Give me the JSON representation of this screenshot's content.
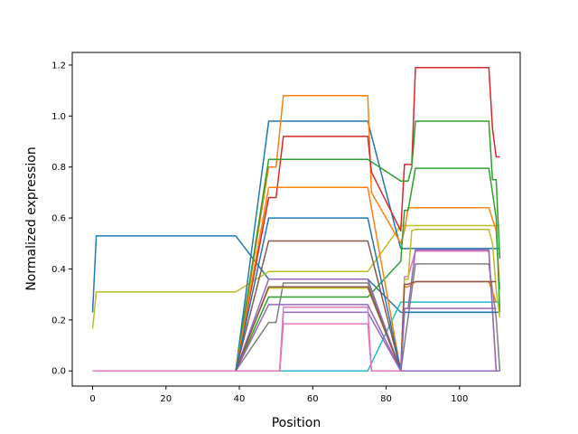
{
  "chart_data": {
    "type": "line",
    "title": "",
    "xlabel": "Position",
    "ylabel": "Normalized expression",
    "xlim": [
      -5.55,
      116.55
    ],
    "ylim": [
      -0.0595,
      1.2495
    ],
    "xticks": [
      0,
      20,
      40,
      60,
      80,
      100
    ],
    "yticks": [
      0.0,
      0.2,
      0.4,
      0.6,
      0.8,
      1.0,
      1.2
    ],
    "grid": false,
    "legend": "none",
    "series": [
      {
        "color": "#1f77b4",
        "x": [
          0,
          1,
          39,
          48,
          75,
          84,
          111
        ],
        "y": [
          0.23,
          0.53,
          0.53,
          0.36,
          0.36,
          0.23,
          0.23
        ]
      },
      {
        "color": "#17becf",
        "x": [
          0,
          39,
          75,
          84,
          111
        ],
        "y": [
          0,
          0,
          0,
          0.27,
          0.27
        ]
      },
      {
        "color": "#bcbd22",
        "x": [
          0,
          1,
          39,
          48,
          75,
          84,
          111
        ],
        "y": [
          0.165,
          0.31,
          0.31,
          0.39,
          0.39,
          0.57,
          0.57
        ]
      },
      {
        "color": "#1f77b4",
        "x": [
          0,
          39,
          48,
          75,
          84,
          111
        ],
        "y": [
          0,
          0,
          0.98,
          0.98,
          0.48,
          0.48
        ]
      },
      {
        "color": "#ff7f0e",
        "x": [
          0,
          39,
          48,
          50,
          52,
          75,
          76,
          84,
          85,
          86,
          108,
          110,
          111
        ],
        "y": [
          0,
          0,
          0.8,
          0.8,
          1.08,
          1.08,
          0.7,
          0.5,
          0.55,
          0.64,
          0.64,
          0.55,
          0.32
        ]
      },
      {
        "color": "#d62728",
        "x": [
          0,
          39,
          48,
          50,
          52,
          53,
          75,
          76,
          84,
          85,
          87,
          88,
          108,
          109,
          110,
          111
        ],
        "y": [
          0,
          0,
          0.68,
          0.68,
          0.92,
          0.92,
          0.92,
          0.78,
          0.55,
          0.81,
          0.81,
          1.19,
          1.19,
          0.95,
          0.84,
          0.84
        ]
      },
      {
        "color": "#2ca02c",
        "x": [
          0,
          39,
          48,
          75,
          84,
          86,
          87,
          88,
          108,
          109,
          110,
          111
        ],
        "y": [
          0,
          0,
          0.83,
          0.83,
          0.745,
          0.745,
          0.8,
          0.98,
          0.98,
          0.75,
          0.75,
          0.44
        ]
      },
      {
        "color": "#2ca02c",
        "x": [
          0,
          39,
          48,
          75,
          84,
          85,
          86,
          88,
          108,
          109,
          110,
          111
        ],
        "y": [
          0,
          0,
          0.29,
          0.29,
          0.43,
          0.63,
          0.63,
          0.795,
          0.795,
          0.7,
          0.6,
          0.23
        ]
      },
      {
        "color": "#8c564b",
        "x": [
          0,
          39,
          48,
          75,
          84,
          108,
          110,
          111
        ],
        "y": [
          0,
          0,
          0.51,
          0.51,
          0,
          0,
          0,
          0
        ]
      },
      {
        "color": "#e377c2",
        "x": [
          0,
          39,
          51,
          52,
          75,
          76,
          84,
          85,
          86,
          88,
          108,
          110
        ],
        "y": [
          0,
          0,
          0,
          0.185,
          0.185,
          0,
          0,
          0.37,
          0.37,
          0.47,
          0.47,
          0
        ]
      },
      {
        "color": "#7f7f7f",
        "x": [
          0,
          39,
          48,
          50,
          52,
          75,
          84,
          88,
          108,
          110,
          111
        ],
        "y": [
          0,
          0,
          0.19,
          0.19,
          0.345,
          0.345,
          0,
          0.42,
          0.42,
          0.21,
          0
        ]
      },
      {
        "color": "#bcbd22",
        "x": [
          0,
          39,
          48,
          75,
          84,
          85,
          86,
          87,
          88,
          108,
          109,
          110,
          111
        ],
        "y": [
          0,
          0,
          0.325,
          0.325,
          0,
          0.36,
          0.36,
          0.55,
          0.555,
          0.555,
          0.5,
          0.32,
          0.21
        ]
      },
      {
        "color": "#9467bd",
        "x": [
          0,
          39,
          48,
          75,
          84,
          108,
          110,
          111
        ],
        "y": [
          0,
          0,
          0.36,
          0.36,
          0,
          0,
          0,
          0
        ]
      },
      {
        "color": "#ff7f0e",
        "x": [
          0,
          39,
          48,
          75,
          84,
          85,
          86,
          88,
          108,
          110
        ],
        "y": [
          0,
          0,
          0.72,
          0.72,
          0,
          0.33,
          0.33,
          0.35,
          0.35,
          0.27
        ]
      },
      {
        "color": "#9467bd",
        "x": [
          0,
          39,
          48,
          75,
          84,
          85,
          86,
          88,
          108,
          110
        ],
        "y": [
          0,
          0,
          0.26,
          0.26,
          0,
          0.245,
          0.245,
          0.475,
          0.475,
          0
        ]
      },
      {
        "color": "#8c564b",
        "x": [
          0,
          39,
          48,
          75,
          84,
          85,
          86,
          88,
          108,
          110
        ],
        "y": [
          0,
          0,
          0.33,
          0.33,
          0,
          0.34,
          0.34,
          0.35,
          0.35,
          0.35
        ]
      },
      {
        "color": "#1f77b4",
        "x": [
          0,
          39,
          48,
          75,
          84,
          85,
          108,
          110
        ],
        "y": [
          0,
          0,
          0.6,
          0.6,
          0,
          0.23,
          0.23,
          0.23
        ]
      },
      {
        "color": "#9467bd",
        "x": [
          0,
          39,
          51,
          52,
          75,
          84,
          85,
          108,
          110
        ],
        "y": [
          0,
          0,
          0,
          0.23,
          0.23,
          0,
          0.245,
          0.245,
          0.245
        ]
      },
      {
        "color": "#e377c2",
        "x": [
          0,
          39,
          51,
          52,
          75,
          76,
          84
        ],
        "y": [
          0,
          0,
          0,
          0.25,
          0.25,
          0,
          0
        ]
      }
    ]
  }
}
